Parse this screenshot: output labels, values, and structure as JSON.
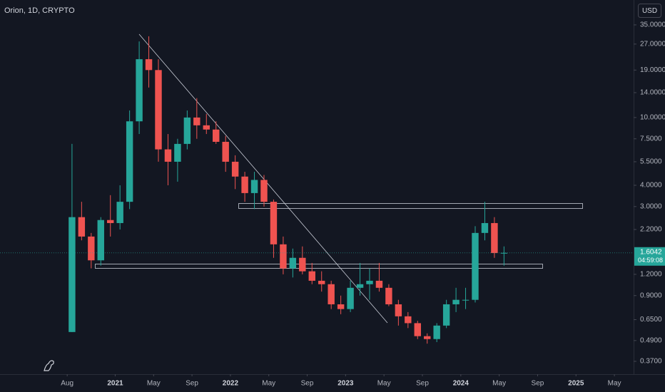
{
  "chart_data": {
    "type": "candlestick",
    "title": "Orion, 1D, CRYPTO",
    "currency": "USD",
    "x": [
      "2020-08",
      "2020-09",
      "2020-10",
      "2020-11",
      "2020-12",
      "2021-01",
      "2021-02",
      "2021-03",
      "2021-04",
      "2021-05",
      "2021-06",
      "2021-07",
      "2021-08",
      "2021-09",
      "2021-10",
      "2021-11",
      "2021-12",
      "2022-01",
      "2022-02",
      "2022-03",
      "2022-04",
      "2022-05",
      "2022-06",
      "2022-07",
      "2022-08",
      "2022-09",
      "2022-10",
      "2022-11",
      "2022-12",
      "2023-01",
      "2023-02",
      "2023-03",
      "2023-04",
      "2023-05",
      "2023-06",
      "2023-07",
      "2023-08",
      "2023-09",
      "2023-10",
      "2023-11",
      "2023-12",
      "2024-01",
      "2024-02",
      "2024-03",
      "2024-04",
      "2024-05"
    ],
    "open": [
      0.55,
      2.6,
      2.0,
      1.45,
      2.5,
      2.4,
      3.2,
      9.5,
      22,
      19,
      6.5,
      5.5,
      7,
      10,
      9,
      8.5,
      7.2,
      5.5,
      4.5,
      3.6,
      4.3,
      3.2,
      1.8,
      1.3,
      1.5,
      1.25,
      1.1,
      1.05,
      0.8,
      0.75,
      1.0,
      1.05,
      1.1,
      1.0,
      0.8,
      0.68,
      0.62,
      0.52,
      0.5,
      0.6,
      0.8,
      0.85,
      0.85,
      2.1,
      2.4,
      1.6
    ],
    "high": [
      7.0,
      3.2,
      2.1,
      2.6,
      3.5,
      4.0,
      11,
      28,
      30,
      22,
      8,
      7.5,
      11,
      13,
      10.5,
      9.5,
      7.8,
      6,
      4.8,
      4.8,
      4.6,
      3.3,
      2.0,
      1.7,
      1.75,
      1.4,
      1.25,
      1.1,
      0.9,
      1.1,
      1.4,
      1.3,
      1.4,
      1.05,
      0.85,
      0.72,
      0.64,
      0.54,
      0.62,
      0.85,
      1.0,
      1.0,
      2.3,
      3.2,
      2.6,
      1.75
    ],
    "low": [
      0.55,
      1.9,
      1.3,
      1.35,
      2.0,
      2.2,
      2.9,
      8,
      15,
      5.5,
      4,
      4.2,
      6.5,
      7.5,
      8,
      7,
      4.8,
      3.8,
      3.2,
      2.9,
      3.0,
      1.5,
      1.2,
      1.15,
      1.2,
      1.05,
      0.95,
      0.75,
      0.7,
      0.72,
      0.9,
      0.85,
      0.95,
      0.78,
      0.6,
      0.58,
      0.5,
      0.47,
      0.48,
      0.58,
      0.72,
      0.75,
      0.82,
      1.9,
      1.5,
      1.35
    ],
    "close": [
      2.6,
      2.0,
      1.45,
      2.5,
      2.4,
      3.2,
      9.5,
      22,
      19,
      6.5,
      5.5,
      7,
      10,
      9,
      8.5,
      7.2,
      5.5,
      4.5,
      3.6,
      4.3,
      3.2,
      1.8,
      1.3,
      1.5,
      1.25,
      1.1,
      1.05,
      0.8,
      0.75,
      1.0,
      1.05,
      1.1,
      1.0,
      0.8,
      0.68,
      0.62,
      0.52,
      0.5,
      0.6,
      0.8,
      0.85,
      0.85,
      2.1,
      2.4,
      1.6,
      1.6042
    ],
    "up_color": "#26a69a",
    "down_color": "#ef5350",
    "log_scale": true,
    "ylim": [
      0.311,
      49.0
    ],
    "yticks": [
      {
        "value": 35,
        "label": "35.0000"
      },
      {
        "value": 27,
        "label": "27.0000"
      },
      {
        "value": 19,
        "label": "19.0000"
      },
      {
        "value": 14,
        "label": "14.0000"
      },
      {
        "value": 10,
        "label": "10.0000"
      },
      {
        "value": 7.5,
        "label": "7.5000"
      },
      {
        "value": 5.5,
        "label": "5.5000"
      },
      {
        "value": 4,
        "label": "4.0000"
      },
      {
        "value": 3,
        "label": "3.0000"
      },
      {
        "value": 2.2,
        "label": "2.2000"
      },
      {
        "value": 1.2,
        "label": "1.2000"
      },
      {
        "value": 0.9,
        "label": "0.9000"
      },
      {
        "value": 0.65,
        "label": "0.6500"
      },
      {
        "value": 0.49,
        "label": "0.4900"
      },
      {
        "value": 0.37,
        "label": "0.3700"
      }
    ],
    "xlim": [
      "2020-01",
      "2025-07"
    ],
    "xticks": [
      {
        "value": "2020-08",
        "label": "Aug"
      },
      {
        "value": "2021-01",
        "label": "2021"
      },
      {
        "value": "2021-05",
        "label": "May"
      },
      {
        "value": "2021-09",
        "label": "Sep"
      },
      {
        "value": "2022-01",
        "label": "2022"
      },
      {
        "value": "2022-05",
        "label": "May"
      },
      {
        "value": "2022-09",
        "label": "Sep"
      },
      {
        "value": "2023-01",
        "label": "2023"
      },
      {
        "value": "2023-05",
        "label": "May"
      },
      {
        "value": "2023-09",
        "label": "Sep"
      },
      {
        "value": "2024-01",
        "label": "2024"
      },
      {
        "value": "2024-05",
        "label": "May"
      },
      {
        "value": "2024-09",
        "label": "Sep"
      },
      {
        "value": "2025-01",
        "label": "2025"
      },
      {
        "value": "2025-05",
        "label": "May"
      }
    ],
    "last_price": 1.6042,
    "countdown": "04:59:08"
  }
}
